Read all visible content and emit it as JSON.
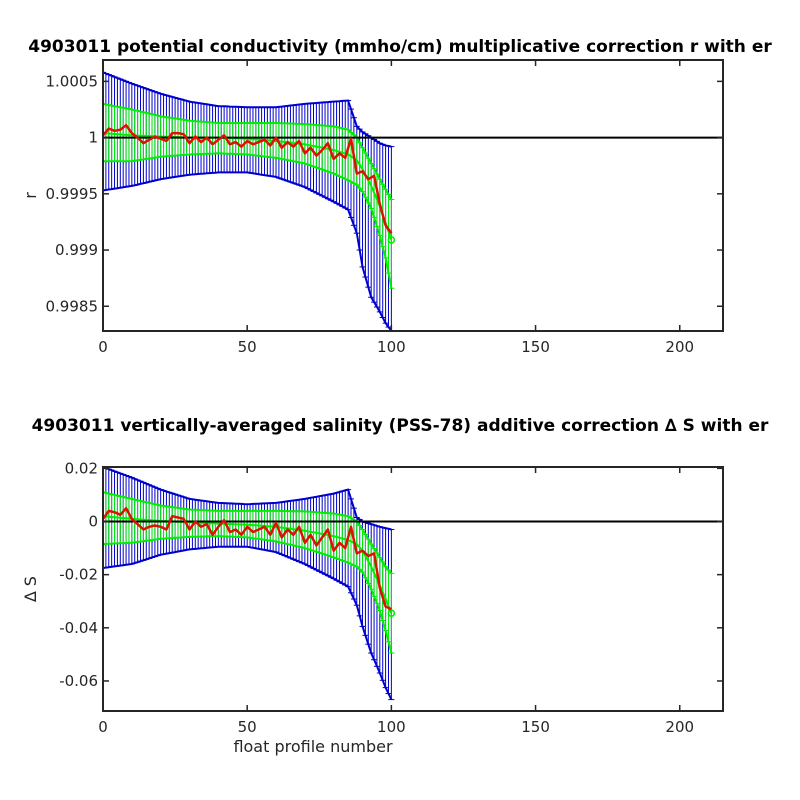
{
  "colors": {
    "background": "#ffffff",
    "axes": "#262626",
    "errorbar_outer": "#0000cc",
    "errorbar_inner": "#00ee00",
    "mean_line": "#dd1100",
    "reference_line": "#000000"
  },
  "chart_data": [
    {
      "type": "line",
      "title": "4903011 potential conductivity (mmho/cm) multiplicative correction r with er",
      "xlabel": "",
      "ylabel": "r",
      "xlim": [
        0,
        215
      ],
      "ylim": [
        0.99828,
        1.00069
      ],
      "xticks": [
        0,
        50,
        100,
        150,
        200
      ],
      "xtick_labels": [
        "0",
        "50",
        "100",
        "150",
        "200"
      ],
      "yticks": [
        0.9985,
        0.999,
        0.9995,
        1,
        1.0005
      ],
      "ytick_labels": [
        "0.9985",
        "0.999",
        "0.9995",
        "1",
        "1.0005"
      ],
      "reference_line": 1,
      "grid": false,
      "fit_center": [
        [
          0,
          1.00004
        ],
        [
          10,
          1.00002
        ],
        [
          20,
          1.00001
        ],
        [
          30,
          1.0
        ],
        [
          40,
          1.0
        ],
        [
          50,
          0.99999
        ],
        [
          60,
          0.99997
        ],
        [
          70,
          0.99994
        ],
        [
          80,
          0.99989
        ],
        [
          85,
          0.99985
        ],
        [
          88,
          0.9998
        ],
        [
          90,
          0.99972
        ],
        [
          93,
          0.99957
        ],
        [
          96,
          0.99939
        ],
        [
          98,
          0.99924
        ],
        [
          100,
          0.99909
        ]
      ],
      "fit_upper_1sigma": [
        [
          0,
          1.0003
        ],
        [
          10,
          1.00025
        ],
        [
          20,
          1.00019
        ],
        [
          30,
          1.00015
        ],
        [
          40,
          1.00013
        ],
        [
          50,
          1.00013
        ],
        [
          60,
          1.00013
        ],
        [
          70,
          1.00012
        ],
        [
          80,
          1.0001
        ],
        [
          85,
          1.00007
        ],
        [
          88,
          1.0
        ],
        [
          90,
          0.99991
        ],
        [
          93,
          0.99977
        ],
        [
          96,
          0.99963
        ],
        [
          98,
          0.99954
        ],
        [
          100,
          0.99945
        ]
      ],
      "fit_lower_1sigma": [
        [
          0,
          0.99979
        ],
        [
          10,
          0.99979
        ],
        [
          20,
          0.99983
        ],
        [
          30,
          0.99985
        ],
        [
          40,
          0.99986
        ],
        [
          50,
          0.99985
        ],
        [
          60,
          0.99982
        ],
        [
          70,
          0.99977
        ],
        [
          80,
          0.99968
        ],
        [
          85,
          0.99962
        ],
        [
          88,
          0.99958
        ],
        [
          90,
          0.99952
        ],
        [
          93,
          0.99937
        ],
        [
          96,
          0.99913
        ],
        [
          98,
          0.99893
        ],
        [
          100,
          0.99866
        ]
      ],
      "fit_upper_2sigma": [
        [
          0,
          1.00058
        ],
        [
          10,
          1.00048
        ],
        [
          20,
          1.00039
        ],
        [
          30,
          1.00032
        ],
        [
          40,
          1.00028
        ],
        [
          50,
          1.00027
        ],
        [
          60,
          1.00027
        ],
        [
          70,
          1.0003
        ],
        [
          80,
          1.00032
        ],
        [
          85,
          1.00033
        ],
        [
          88,
          1.0001
        ],
        [
          90,
          1.00005
        ],
        [
          93,
          1.0
        ],
        [
          96,
          0.99995
        ],
        [
          98,
          0.99993
        ],
        [
          100,
          0.99992
        ]
      ],
      "fit_lower_2sigma": [
        [
          0,
          0.99953
        ],
        [
          10,
          0.99957
        ],
        [
          20,
          0.99963
        ],
        [
          30,
          0.99967
        ],
        [
          40,
          0.99969
        ],
        [
          50,
          0.99969
        ],
        [
          60,
          0.99965
        ],
        [
          70,
          0.99956
        ],
        [
          80,
          0.99943
        ],
        [
          85,
          0.99936
        ],
        [
          88,
          0.99915
        ],
        [
          90,
          0.99885
        ],
        [
          93,
          0.99858
        ],
        [
          96,
          0.99845
        ],
        [
          98,
          0.99835
        ],
        [
          100,
          0.99828
        ]
      ],
      "profile_correction": [
        [
          0,
          1.00002
        ],
        [
          2,
          1.00008
        ],
        [
          4,
          1.00006
        ],
        [
          6,
          1.00007
        ],
        [
          8,
          1.00011
        ],
        [
          10,
          1.00004
        ],
        [
          12,
          1.0
        ],
        [
          14,
          0.99995
        ],
        [
          16,
          0.99998
        ],
        [
          18,
          1.00001
        ],
        [
          20,
          0.99999
        ],
        [
          22,
          0.99997
        ],
        [
          24,
          1.00004
        ],
        [
          26,
          1.00004
        ],
        [
          28,
          1.00003
        ],
        [
          30,
          0.99995
        ],
        [
          32,
          1.00001
        ],
        [
          34,
          0.99996
        ],
        [
          36,
          1.0
        ],
        [
          38,
          0.99994
        ],
        [
          40,
          0.99998
        ],
        [
          42,
          1.00002
        ],
        [
          44,
          0.99994
        ],
        [
          46,
          0.99996
        ],
        [
          48,
          0.99992
        ],
        [
          50,
          0.99997
        ],
        [
          52,
          0.99994
        ],
        [
          54,
          0.99996
        ],
        [
          56,
          0.99998
        ],
        [
          58,
          0.99993
        ],
        [
          60,
          1.0
        ],
        [
          62,
          0.99991
        ],
        [
          64,
          0.99996
        ],
        [
          66,
          0.99992
        ],
        [
          68,
          0.99997
        ],
        [
          70,
          0.99986
        ],
        [
          72,
          0.99991
        ],
        [
          74,
          0.99984
        ],
        [
          76,
          0.99989
        ],
        [
          78,
          0.99995
        ],
        [
          80,
          0.99981
        ],
        [
          82,
          0.99986
        ],
        [
          84,
          0.99982
        ],
        [
          86,
          0.99999
        ],
        [
          88,
          0.99968
        ],
        [
          90,
          0.9997
        ],
        [
          92,
          0.99963
        ],
        [
          94,
          0.99966
        ],
        [
          96,
          0.99941
        ],
        [
          98,
          0.99922
        ],
        [
          100,
          0.99915
        ]
      ]
    },
    {
      "type": "line",
      "title": "4903011 vertically-averaged salinity (PSS-78) additive correction ∆ S with er",
      "xlabel": "float profile number",
      "ylabel": "∆ S",
      "xlim": [
        0,
        215
      ],
      "ylim": [
        -0.0713,
        0.0205
      ],
      "xticks": [
        0,
        50,
        100,
        150,
        200
      ],
      "xtick_labels": [
        "0",
        "50",
        "100",
        "150",
        "200"
      ],
      "yticks": [
        -0.06,
        -0.04,
        -0.02,
        0,
        0.02
      ],
      "ytick_labels": [
        "-0.06",
        "-0.04",
        "-0.02",
        "0",
        "0.02"
      ],
      "reference_line": 0,
      "grid": false,
      "fit_center": [
        [
          0,
          0.002
        ],
        [
          10,
          0.001
        ],
        [
          20,
          0.0002
        ],
        [
          30,
          -0.0003
        ],
        [
          40,
          -0.0008
        ],
        [
          50,
          -0.0012
        ],
        [
          60,
          -0.002
        ],
        [
          70,
          -0.0035
        ],
        [
          80,
          -0.0055
        ],
        [
          85,
          -0.007
        ],
        [
          88,
          -0.0085
        ],
        [
          90,
          -0.011
        ],
        [
          93,
          -0.017
        ],
        [
          96,
          -0.024
        ],
        [
          98,
          -0.029
        ],
        [
          100,
          -0.0345
        ]
      ],
      "fit_upper_1sigma": [
        [
          0,
          0.011
        ],
        [
          10,
          0.0085
        ],
        [
          20,
          0.006
        ],
        [
          30,
          0.0045
        ],
        [
          40,
          0.004
        ],
        [
          50,
          0.004
        ],
        [
          60,
          0.004
        ],
        [
          70,
          0.0038
        ],
        [
          80,
          0.003
        ],
        [
          85,
          0.002
        ],
        [
          88,
          0.0
        ],
        [
          90,
          -0.003
        ],
        [
          93,
          -0.0085
        ],
        [
          96,
          -0.0135
        ],
        [
          98,
          -0.017
        ],
        [
          100,
          -0.0195
        ]
      ],
      "fit_lower_1sigma": [
        [
          0,
          -0.0085
        ],
        [
          10,
          -0.008
        ],
        [
          20,
          -0.0065
        ],
        [
          30,
          -0.0058
        ],
        [
          40,
          -0.0055
        ],
        [
          50,
          -0.006
        ],
        [
          60,
          -0.0075
        ],
        [
          70,
          -0.01
        ],
        [
          80,
          -0.0135
        ],
        [
          85,
          -0.0155
        ],
        [
          88,
          -0.017
        ],
        [
          90,
          -0.019
        ],
        [
          93,
          -0.0255
        ],
        [
          96,
          -0.0335
        ],
        [
          98,
          -0.041
        ],
        [
          100,
          -0.0495
        ]
      ],
      "fit_upper_2sigma": [
        [
          0,
          0.0205
        ],
        [
          10,
          0.0165
        ],
        [
          20,
          0.012
        ],
        [
          30,
          0.0085
        ],
        [
          40,
          0.007
        ],
        [
          50,
          0.0065
        ],
        [
          60,
          0.007
        ],
        [
          70,
          0.0085
        ],
        [
          80,
          0.0105
        ],
        [
          85,
          0.012
        ],
        [
          88,
          0.0015
        ],
        [
          90,
          0.0
        ],
        [
          93,
          -0.001
        ],
        [
          96,
          -0.002
        ],
        [
          98,
          -0.0025
        ],
        [
          100,
          -0.003
        ]
      ],
      "fit_lower_2sigma": [
        [
          0,
          -0.0175
        ],
        [
          10,
          -0.016
        ],
        [
          20,
          -0.0125
        ],
        [
          30,
          -0.0105
        ],
        [
          40,
          -0.0095
        ],
        [
          50,
          -0.0095
        ],
        [
          60,
          -0.0115
        ],
        [
          70,
          -0.016
        ],
        [
          80,
          -0.0215
        ],
        [
          85,
          -0.0245
        ],
        [
          88,
          -0.0315
        ],
        [
          90,
          -0.0395
        ],
        [
          93,
          -0.0495
        ],
        [
          96,
          -0.057
        ],
        [
          98,
          -0.0625
        ],
        [
          100,
          -0.067
        ]
      ],
      "profile_correction": [
        [
          0,
          0.001
        ],
        [
          2,
          0.004
        ],
        [
          4,
          0.0035
        ],
        [
          6,
          0.0025
        ],
        [
          8,
          0.005
        ],
        [
          10,
          0.001
        ],
        [
          12,
          -0.001
        ],
        [
          14,
          -0.003
        ],
        [
          16,
          -0.002
        ],
        [
          18,
          -0.0015
        ],
        [
          20,
          -0.002
        ],
        [
          22,
          -0.003
        ],
        [
          24,
          0.002
        ],
        [
          26,
          0.0015
        ],
        [
          28,
          0.001
        ],
        [
          30,
          -0.003
        ],
        [
          32,
          0.0
        ],
        [
          34,
          -0.002
        ],
        [
          36,
          -0.001
        ],
        [
          38,
          -0.005
        ],
        [
          40,
          -0.002
        ],
        [
          42,
          0.0005
        ],
        [
          44,
          -0.004
        ],
        [
          46,
          -0.003
        ],
        [
          48,
          -0.005
        ],
        [
          50,
          -0.002
        ],
        [
          52,
          -0.004
        ],
        [
          54,
          -0.003
        ],
        [
          56,
          -0.002
        ],
        [
          58,
          -0.005
        ],
        [
          60,
          -0.0005
        ],
        [
          62,
          -0.006
        ],
        [
          64,
          -0.003
        ],
        [
          66,
          -0.005
        ],
        [
          68,
          -0.002
        ],
        [
          70,
          -0.008
        ],
        [
          72,
          -0.005
        ],
        [
          74,
          -0.009
        ],
        [
          76,
          -0.006
        ],
        [
          78,
          -0.003
        ],
        [
          80,
          -0.011
        ],
        [
          82,
          -0.008
        ],
        [
          84,
          -0.01
        ],
        [
          86,
          -0.002
        ],
        [
          88,
          -0.012
        ],
        [
          90,
          -0.011
        ],
        [
          92,
          -0.013
        ],
        [
          94,
          -0.012
        ],
        [
          96,
          -0.025
        ],
        [
          98,
          -0.032
        ],
        [
          100,
          -0.033
        ]
      ]
    }
  ]
}
